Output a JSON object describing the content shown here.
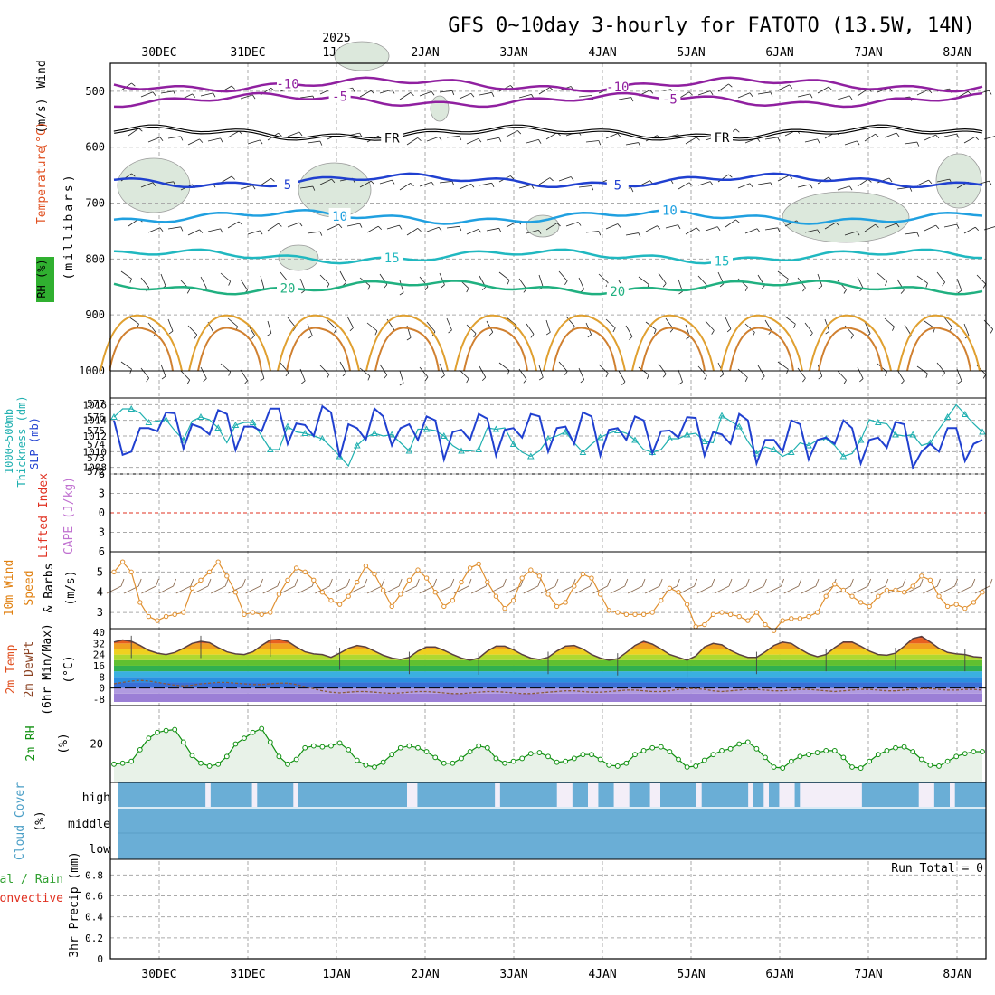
{
  "title": "GFS 0~10day 3-hourly for FATOTO (13.5W, 14N)",
  "year_label": "2025",
  "date_labels": [
    "30DEC",
    "31DEC",
    "1JAN",
    "2JAN",
    "3JAN",
    "4JAN",
    "5JAN",
    "6JAN",
    "7JAN",
    "8JAN"
  ],
  "panel_labels": {
    "upper": [
      {
        "text": "Wind",
        "color": "#000000"
      },
      {
        "text": "(m/s)",
        "color": "#000000"
      },
      {
        "text": "Temperature",
        "color": "#e05020"
      },
      {
        "text": "(°C)",
        "color": "#e05020"
      },
      {
        "text": "(millibars)",
        "color": "#000000"
      },
      {
        "text": "RH (%)",
        "color": "#000000"
      }
    ],
    "thickness": {
      "line1": "1000~500mb",
      "line2": "Thickness (dm)",
      "slp": "SLP (mb)"
    },
    "cape": {
      "li": "Lifted Index",
      "cape": "CAPE (J/kg)"
    },
    "wind10": {
      "line1": "10m Wind",
      "line2": "Speed",
      "line3": "& Barbs",
      "unit": "(m/s)"
    },
    "temp2m": {
      "line1": "2m Temp",
      "line2": "2m DewPt",
      "line3": "(6hr Min/Max)",
      "unit": "(°C)"
    },
    "rh2m": {
      "line1": "2m RH",
      "unit": "(%)"
    },
    "cloud": {
      "line1": "Cloud Cover",
      "unit": "(%)",
      "high": "high",
      "middle": "middle",
      "low": "low"
    },
    "precip": {
      "line1": "Total / Rain",
      "line2": "Convective",
      "line3": "3hr Precip (mm)",
      "run_total": "Run Total = 0"
    }
  },
  "colors": {
    "temp_label": "#e05020",
    "thickness": "#20b0b0",
    "slp": "#2040d0",
    "li": "#e03020",
    "cape": "#c070d0",
    "wind_label": "#e08010",
    "wind_line": "#e09030",
    "rh_line": "#109010",
    "rh_fill": "#e8f2e8",
    "cloud": "#6aaed6",
    "cloud_clear": "#f3eef8",
    "moist": "#dce8dc"
  },
  "chart_data": [
    {
      "type": "line",
      "name": "Upper air cross-section",
      "ylabel": "(millibars)",
      "yticks": [
        500,
        600,
        700,
        800,
        900,
        1000
      ],
      "ylim": [
        450,
        1000
      ],
      "isotherms": [
        {
          "label": "-10",
          "color": "#9020a0",
          "level": 488
        },
        {
          "label": "-5",
          "color": "#9020a0",
          "level": 516
        },
        {
          "label": "FR",
          "color": "#000000",
          "level": 575
        },
        {
          "label": "5",
          "color": "#2040d0",
          "level": 660
        },
        {
          "label": "10",
          "color": "#20a0e0",
          "level": 725
        },
        {
          "label": "15",
          "color": "#20b8c0",
          "level": 795
        },
        {
          "label": "20",
          "color": "#20b080",
          "level": 850
        }
      ],
      "labels_shown": [
        "-10",
        "-5",
        "FR",
        "5",
        "10",
        "15",
        "20",
        "-10",
        "-5",
        "FR",
        "5",
        "10",
        "15",
        "20"
      ]
    },
    {
      "type": "line",
      "name": "Thickness and SLP",
      "thickness_ticks": [
        572,
        573,
        574,
        575,
        576,
        577
      ],
      "slp_ticks": [
        1008,
        1010,
        1012,
        1014,
        1016
      ],
      "thickness": [
        576.0,
        576.6,
        576.6,
        576.3,
        575.6,
        575.7,
        575.8,
        575.0,
        574.3,
        575.7,
        576.0,
        575.8,
        575.2,
        574.1,
        575.4,
        575.6,
        575.6,
        574.6,
        573.6,
        573.6,
        575.3,
        574.9,
        574.8,
        574.6,
        574.4,
        573.8,
        573.1,
        572.4,
        573.9,
        574.5,
        574.8,
        574.6,
        574.7,
        574.1,
        573.5,
        575.1,
        575.1,
        575.0,
        574.6,
        573.9,
        573.5,
        573.5,
        573.6,
        575.2,
        575.1,
        575.2,
        574.0,
        573.4,
        573.1,
        573.5,
        574.4,
        574.6,
        574.9,
        574.1,
        573.4,
        574.0,
        574.5,
        574.8,
        575.0,
        574.8,
        574.3,
        573.6,
        573.4,
        573.6,
        574.4,
        574.4,
        574.7,
        574.8,
        574.2,
        574.1,
        576.1,
        575.7,
        575.3,
        574.2,
        573.3,
        573.8,
        573.6,
        573.1,
        573.4,
        574.1,
        573.9,
        574.3,
        574.4,
        573.9,
        573.1,
        573.3,
        574.3,
        575.8,
        575.6,
        575.5,
        574.7,
        574.6,
        574.7,
        573.9,
        574.1,
        575.1,
        576.0,
        576.9,
        576.2,
        575.5,
        574.9
      ],
      "slp": [
        1014.0,
        1009.6,
        1010.0,
        1013.0,
        1013.0,
        1012.6,
        1015.0,
        1014.9,
        1010.4,
        1013.5,
        1013.1,
        1012.2,
        1015.3,
        1014.8,
        1010.2,
        1013.2,
        1013.2,
        1012.6,
        1015.5,
        1015.5,
        1011.0,
        1013.6,
        1013.4,
        1012.0,
        1015.8,
        1015.0,
        1009.3,
        1013.5,
        1013.0,
        1011.5,
        1015.5,
        1014.5,
        1010.8,
        1013.0,
        1013.5,
        1011.5,
        1014.5,
        1014.0,
        1009.0,
        1012.5,
        1012.8,
        1011.5,
        1014.8,
        1014.2,
        1009.5,
        1012.8,
        1013.0,
        1011.8,
        1014.8,
        1014.5,
        1010.0,
        1013.0,
        1013.2,
        1011.0,
        1015.0,
        1014.5,
        1009.5,
        1012.8,
        1013.0,
        1011.5,
        1014.5,
        1014.0,
        1009.8,
        1012.6,
        1012.7,
        1011.8,
        1014.4,
        1014.3,
        1009.5,
        1012.5,
        1012.2,
        1011.0,
        1014.8,
        1014.0,
        1008.5,
        1011.5,
        1011.5,
        1010.0,
        1014.0,
        1013.5,
        1009.0,
        1011.5,
        1011.8,
        1011.0,
        1014.0,
        1013.0,
        1008.5,
        1011.5,
        1011.8,
        1010.5,
        1013.8,
        1013.5,
        1008.0,
        1010.0,
        1011.0,
        1010.0,
        1013.0,
        1013.0,
        1008.8,
        1011.0,
        1011.5
      ]
    },
    {
      "type": "line",
      "name": "Lifted Index / CAPE",
      "yticks": [
        -6,
        -3,
        0,
        3,
        6
      ],
      "ylim": [
        -6,
        6
      ],
      "zero_line": 0
    },
    {
      "type": "line",
      "name": "10m Wind speed",
      "yticks": [
        3,
        4,
        5
      ],
      "ylim": [
        2.2,
        6
      ],
      "values": [
        5.0,
        5.5,
        5.0,
        3.5,
        2.8,
        2.6,
        2.8,
        2.9,
        3.0,
        4.2,
        4.6,
        5.0,
        5.5,
        4.8,
        4.0,
        2.9,
        3.0,
        2.9,
        3.0,
        3.9,
        4.6,
        5.2,
        5.0,
        4.6,
        4.0,
        3.6,
        3.4,
        3.8,
        4.5,
        5.3,
        4.9,
        4.1,
        3.3,
        3.9,
        4.6,
        5.1,
        4.7,
        4.0,
        3.3,
        3.6,
        4.5,
        5.2,
        5.4,
        4.5,
        3.8,
        3.2,
        3.6,
        4.7,
        5.1,
        4.8,
        3.9,
        3.3,
        3.5,
        4.3,
        4.9,
        4.7,
        3.9,
        3.1,
        3.0,
        2.9,
        2.9,
        2.9,
        3.0,
        3.6,
        4.2,
        4.0,
        3.4,
        2.3,
        2.4,
        2.9,
        3.0,
        2.9,
        2.8,
        2.6,
        3.0,
        2.4,
        2.1,
        2.6,
        2.7,
        2.7,
        2.8,
        3.0,
        3.8,
        4.4,
        4.1,
        3.8,
        3.5,
        3.3,
        3.8,
        4.1,
        4.1,
        4.0,
        4.3,
        4.8,
        4.6,
        3.8,
        3.3,
        3.4,
        3.2,
        3.5,
        4.0
      ]
    },
    {
      "type": "area",
      "name": "2m Temp and DewPt",
      "yticks": [
        -8,
        0,
        8,
        16,
        24,
        32,
        40
      ],
      "ylim": [
        -10,
        40
      ],
      "temp": [
        33.0,
        34.5,
        33.5,
        30.5,
        27.0,
        25.0,
        24.0,
        25.5,
        28.5,
        32.0,
        33.5,
        32.5,
        29.0,
        26.0,
        24.5,
        24.0,
        26.0,
        30.5,
        34.5,
        35.0,
        33.5,
        29.5,
        26.0,
        24.5,
        24.0,
        22.0,
        25.0,
        28.5,
        30.5,
        29.5,
        26.5,
        23.5,
        21.5,
        20.5,
        22.0,
        26.5,
        29.5,
        29.5,
        27.0,
        24.0,
        21.5,
        20.0,
        21.5,
        26.5,
        30.0,
        30.0,
        27.5,
        24.0,
        21.5,
        20.5,
        22.0,
        26.5,
        30.0,
        30.5,
        28.0,
        24.0,
        21.5,
        20.0,
        21.0,
        25.5,
        30.5,
        33.5,
        31.5,
        28.0,
        24.0,
        22.0,
        20.0,
        23.0,
        29.5,
        32.0,
        31.0,
        27.0,
        24.0,
        22.0,
        22.0,
        26.0,
        30.5,
        33.0,
        32.0,
        28.0,
        24.5,
        22.5,
        24.0,
        29.0,
        33.0,
        33.0,
        30.0,
        26.5,
        24.0,
        23.5,
        25.0,
        30.0,
        35.5,
        37.0,
        33.0,
        28.5,
        25.5,
        24.5,
        24.0,
        22.5,
        22.0
      ],
      "dewpt": [
        3.0,
        4.0,
        5.0,
        5.5,
        5.0,
        4.0,
        3.0,
        2.0,
        1.5,
        2.0,
        3.0,
        3.5,
        4.0,
        4.0,
        3.5,
        3.0,
        2.5,
        2.5,
        3.0,
        3.5,
        3.5,
        2.5,
        1.0,
        -0.5,
        -2.0,
        -3.0,
        -3.5,
        -3.0,
        -2.5,
        -2.5,
        -3.0,
        -3.5,
        -3.8,
        -3.5,
        -3.0,
        -2.5,
        -2.5,
        -3.0,
        -3.5,
        -4.0,
        -4.0,
        -3.5,
        -3.0,
        -2.5,
        -2.5,
        -3.0,
        -3.5,
        -4.0,
        -4.0,
        -3.5,
        -3.0,
        -2.5,
        -2.0,
        -2.0,
        -2.5,
        -3.0,
        -3.0,
        -2.5,
        -2.0,
        -1.5,
        -1.5,
        -2.0,
        -2.5,
        -2.5,
        -2.0,
        -1.0,
        -0.5,
        -0.5,
        -1.0,
        -2.0,
        -2.5,
        -2.0,
        -1.5,
        -1.0,
        -1.0,
        -1.5,
        -2.0,
        -2.0,
        -1.5,
        -1.0,
        -1.0,
        -1.5,
        -2.0,
        -2.5,
        -2.0,
        -1.5,
        -1.0,
        -1.0,
        -1.5,
        -2.0,
        -2.0,
        -1.5,
        -1.0,
        -0.5,
        -0.5,
        -1.0,
        -1.5,
        -1.5,
        -1.0,
        -1.0,
        -1.5
      ]
    },
    {
      "type": "area",
      "name": "2m RH",
      "yticks": [
        20
      ],
      "ylim": [
        0,
        40
      ],
      "values": [
        9.5,
        10.0,
        11.0,
        17.0,
        23.0,
        26.0,
        27.0,
        27.5,
        21.0,
        14.0,
        10.0,
        8.5,
        9.5,
        13.5,
        20.0,
        23.0,
        26.0,
        28.0,
        21.0,
        13.5,
        9.5,
        12.0,
        18.0,
        19.0,
        18.5,
        19.0,
        20.5,
        17.0,
        11.5,
        9.0,
        8.0,
        10.5,
        14.5,
        18.0,
        19.0,
        18.0,
        16.0,
        13.0,
        10.0,
        10.0,
        12.5,
        16.0,
        19.0,
        18.0,
        12.5,
        10.0,
        11.0,
        12.5,
        15.0,
        15.5,
        13.5,
        10.5,
        11.0,
        12.5,
        14.5,
        14.5,
        12.0,
        9.0,
        8.5,
        10.0,
        14.5,
        16.5,
        18.0,
        18.5,
        16.0,
        12.0,
        8.0,
        8.5,
        11.5,
        14.5,
        16.5,
        17.5,
        20.0,
        21.0,
        17.5,
        13.0,
        8.0,
        7.5,
        11.0,
        13.5,
        14.5,
        15.5,
        16.5,
        16.5,
        13.0,
        8.0,
        7.5,
        11.0,
        14.5,
        16.5,
        18.0,
        18.5,
        16.0,
        12.0,
        9.0,
        8.5,
        11.0,
        13.5,
        15.0,
        16.0,
        16.0
      ]
    },
    {
      "type": "bar",
      "name": "Cloud Cover",
      "levels": [
        "high",
        "middle",
        "low"
      ],
      "high_gaps": [
        [
          17,
          18
        ],
        [
          26,
          27
        ],
        [
          34,
          35
        ],
        [
          56,
          58
        ],
        [
          73,
          74
        ],
        [
          85,
          88
        ],
        [
          91,
          93
        ],
        [
          96,
          99
        ],
        [
          103,
          105
        ],
        [
          112,
          113
        ],
        [
          122,
          123
        ],
        [
          125,
          126
        ],
        [
          128,
          131
        ],
        [
          132,
          144
        ],
        [
          155,
          158
        ],
        [
          161,
          162
        ]
      ]
    },
    {
      "type": "line",
      "name": "3hr Precip",
      "ylabel": "3hr Precip (mm)",
      "yticks": [
        0,
        0.2,
        0.4,
        0.6,
        0.8
      ],
      "ylim": [
        0,
        0.95
      ],
      "total": 0
    }
  ]
}
